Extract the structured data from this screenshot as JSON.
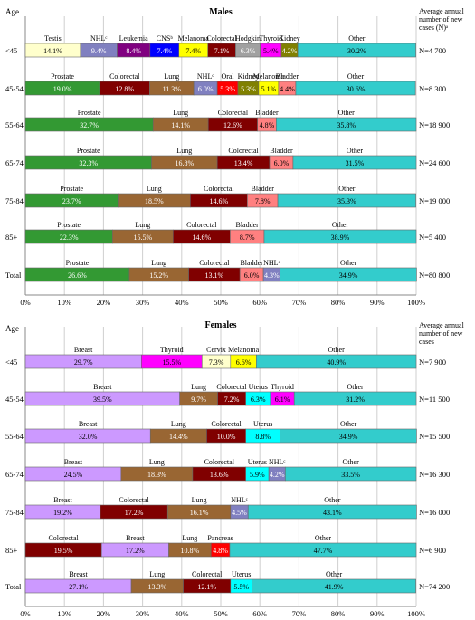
{
  "chart_data": [
    {
      "type": "bar",
      "orientation": "horizontal-stacked-percent",
      "title": "Males",
      "ylabel": "Age",
      "right_header": "Average annual number of new cases (N)ᵃ",
      "xlim": [
        0,
        100
      ],
      "x_ticks": [
        "0%",
        "10%",
        "20%",
        "30%",
        "40%",
        "50%",
        "60%",
        "70%",
        "80%",
        "90%",
        "100%"
      ],
      "grid": "vertical",
      "rows": [
        {
          "category": "<45",
          "n": "N=4 700",
          "segments": [
            {
              "name": "Testis",
              "value": 14.1,
              "color": "#ffffcc",
              "label": "14.1%"
            },
            {
              "name": "NHLᶜ",
              "value": 9.4,
              "color": "#8080c0",
              "label": "9.4%"
            },
            {
              "name": "Leukemia",
              "value": 8.4,
              "color": "#800080",
              "label": "8.4%"
            },
            {
              "name": "CNSᵇ",
              "value": 7.4,
              "color": "#0000ff",
              "label": "7.4%"
            },
            {
              "name": "Melanoma",
              "value": 7.4,
              "color": "#ffff00",
              "label": "7.4%"
            },
            {
              "name": "Colorectal",
              "value": 7.1,
              "color": "#800000",
              "label": "7.1%"
            },
            {
              "name": "Hodgkin",
              "value": 6.3,
              "color": "#a0a0a0",
              "label": "6.3%"
            },
            {
              "name": "Thyroid",
              "value": 5.4,
              "color": "#ff00ff",
              "label": "5.4%"
            },
            {
              "name": "Kidney",
              "value": 4.2,
              "color": "#808000",
              "label": "4.2%"
            },
            {
              "name": "Other",
              "value": 30.2,
              "color": "#33cccc",
              "label": "30.2%"
            }
          ]
        },
        {
          "category": "45-54",
          "n": "N=8 300",
          "segments": [
            {
              "name": "Prostate",
              "value": 19.0,
              "color": "#339933",
              "label": "19.0%"
            },
            {
              "name": "Colorectal",
              "value": 12.8,
              "color": "#800000",
              "label": "12.8%"
            },
            {
              "name": "Lung",
              "value": 11.3,
              "color": "#996633",
              "label": "11.3%"
            },
            {
              "name": "NHLᶜ",
              "value": 6.0,
              "color": "#8080c0",
              "label": "6.0%"
            },
            {
              "name": "Oral",
              "value": 5.3,
              "color": "#ff0000",
              "label": "5.3%"
            },
            {
              "name": "Kidney",
              "value": 5.3,
              "color": "#808000",
              "label": "5.3%"
            },
            {
              "name": "Melanoma",
              "value": 5.1,
              "color": "#ffff00",
              "label": "5.1%"
            },
            {
              "name": "Bladder",
              "value": 4.4,
              "color": "#ff8080",
              "label": "4.4%"
            },
            {
              "name": "Other",
              "value": 30.6,
              "color": "#33cccc",
              "label": "30.6%"
            }
          ]
        },
        {
          "category": "55-64",
          "n": "N=18 900",
          "segments": [
            {
              "name": "Prostate",
              "value": 32.7,
              "color": "#339933",
              "label": "32.7%"
            },
            {
              "name": "Lung",
              "value": 14.1,
              "color": "#996633",
              "label": "14.1%"
            },
            {
              "name": "Colorectal",
              "value": 12.6,
              "color": "#800000",
              "label": "12.6%"
            },
            {
              "name": "Bladder",
              "value": 4.8,
              "color": "#ff8080",
              "label": "4.8%"
            },
            {
              "name": "Other",
              "value": 35.8,
              "color": "#33cccc",
              "label": "35.8%"
            }
          ]
        },
        {
          "category": "65-74",
          "n": "N=24 600",
          "segments": [
            {
              "name": "Prostate",
              "value": 32.3,
              "color": "#339933",
              "label": "32.3%"
            },
            {
              "name": "Lung",
              "value": 16.8,
              "color": "#996633",
              "label": "16.8%"
            },
            {
              "name": "Colorectal",
              "value": 13.4,
              "color": "#800000",
              "label": "13.4%"
            },
            {
              "name": "Bladder",
              "value": 6.0,
              "color": "#ff8080",
              "label": "6.0%"
            },
            {
              "name": "Other",
              "value": 31.5,
              "color": "#33cccc",
              "label": "31.5%"
            }
          ]
        },
        {
          "category": "75-84",
          "n": "N=19 000",
          "segments": [
            {
              "name": "Prostate",
              "value": 23.7,
              "color": "#339933",
              "label": "23.7%"
            },
            {
              "name": "Lung",
              "value": 18.5,
              "color": "#996633",
              "label": "18.5%"
            },
            {
              "name": "Colorectal",
              "value": 14.6,
              "color": "#800000",
              "label": "14.6%"
            },
            {
              "name": "Bladder",
              "value": 7.8,
              "color": "#ff8080",
              "label": "7.8%"
            },
            {
              "name": "Other",
              "value": 35.3,
              "color": "#33cccc",
              "label": "35.3%"
            }
          ]
        },
        {
          "category": "85+",
          "n": "N=5 400",
          "segments": [
            {
              "name": "Prostate",
              "value": 22.3,
              "color": "#339933",
              "label": "22.3%"
            },
            {
              "name": "Lung",
              "value": 15.5,
              "color": "#996633",
              "label": "15.5%"
            },
            {
              "name": "Colorectal",
              "value": 14.6,
              "color": "#800000",
              "label": "14.6%"
            },
            {
              "name": "Bladder",
              "value": 8.7,
              "color": "#ff8080",
              "label": "8.7%"
            },
            {
              "name": "Other",
              "value": 38.9,
              "color": "#33cccc",
              "label": "38.9%"
            }
          ]
        },
        {
          "category": "Total",
          "n": "N=80 800",
          "segments": [
            {
              "name": "Prostate",
              "value": 26.6,
              "color": "#339933",
              "label": "26.6%"
            },
            {
              "name": "Lung",
              "value": 15.2,
              "color": "#996633",
              "label": "15.2%"
            },
            {
              "name": "Colorectal",
              "value": 13.1,
              "color": "#800000",
              "label": "13.1%"
            },
            {
              "name": "Bladder",
              "value": 6.0,
              "color": "#ff8080",
              "label": "6.0%"
            },
            {
              "name": "NHLᶜ",
              "value": 4.3,
              "color": "#8080c0",
              "label": "4.3%"
            },
            {
              "name": "Other",
              "value": 34.9,
              "color": "#33cccc",
              "label": "34.9%"
            }
          ]
        }
      ]
    },
    {
      "type": "bar",
      "orientation": "horizontal-stacked-percent",
      "title": "Females",
      "ylabel": "Age",
      "right_header": "Average annual number of new cases",
      "xlim": [
        0,
        100
      ],
      "x_ticks": [
        "0%",
        "10%",
        "20%",
        "30%",
        "40%",
        "50%",
        "60%",
        "70%",
        "80%",
        "90%",
        "100%"
      ],
      "grid": "vertical",
      "rows": [
        {
          "category": "<45",
          "n": "N=7 900",
          "segments": [
            {
              "name": "Breast",
              "value": 29.7,
              "color": "#cc99ff",
              "label": "29.7%"
            },
            {
              "name": "Thyroid",
              "value": 15.5,
              "color": "#ff00ff",
              "label": "15.5%"
            },
            {
              "name": "Cervix",
              "value": 7.3,
              "color": "#ffffcc",
              "label": "7.3%"
            },
            {
              "name": "Melanoma",
              "value": 6.6,
              "color": "#ffff00",
              "label": "6.6%"
            },
            {
              "name": "Other",
              "value": 40.9,
              "color": "#33cccc",
              "label": "40.9%"
            }
          ]
        },
        {
          "category": "45-54",
          "n": "N=11 500",
          "segments": [
            {
              "name": "Breast",
              "value": 39.5,
              "color": "#cc99ff",
              "label": "39.5%"
            },
            {
              "name": "Lung",
              "value": 9.7,
              "color": "#996633",
              "label": "9.7%"
            },
            {
              "name": "Colorectal",
              "value": 7.2,
              "color": "#800000",
              "label": "7.2%"
            },
            {
              "name": "Uterus",
              "value": 6.3,
              "color": "#00ffff",
              "label": "6.3%"
            },
            {
              "name": "Thyroid",
              "value": 6.1,
              "color": "#ff00ff",
              "label": "6.1%"
            },
            {
              "name": "Other",
              "value": 31.2,
              "color": "#33cccc",
              "label": "31.2%"
            }
          ]
        },
        {
          "category": "55-64",
          "n": "N=15 500",
          "segments": [
            {
              "name": "Breast",
              "value": 32.0,
              "color": "#cc99ff",
              "label": "32.0%"
            },
            {
              "name": "Lung",
              "value": 14.4,
              "color": "#996633",
              "label": "14.4%"
            },
            {
              "name": "Colorectal",
              "value": 10.0,
              "color": "#800000",
              "label": "10.0%"
            },
            {
              "name": "Uterus",
              "value": 8.8,
              "color": "#00ffff",
              "label": "8.8%"
            },
            {
              "name": "Other",
              "value": 34.9,
              "color": "#33cccc",
              "label": "34.9%"
            }
          ]
        },
        {
          "category": "65-74",
          "n": "N=16 300",
          "segments": [
            {
              "name": "Breast",
              "value": 24.5,
              "color": "#cc99ff",
              "label": "24.5%"
            },
            {
              "name": "Lung",
              "value": 18.3,
              "color": "#996633",
              "label": "18.3%"
            },
            {
              "name": "Colorectal",
              "value": 13.6,
              "color": "#800000",
              "label": "13.6%"
            },
            {
              "name": "Uterus",
              "value": 5.9,
              "color": "#00ffff",
              "label": "5.9%"
            },
            {
              "name": "NHLᶜ",
              "value": 4.2,
              "color": "#8080c0",
              "label": "4.2%"
            },
            {
              "name": "Other",
              "value": 33.5,
              "color": "#33cccc",
              "label": "33.5%"
            }
          ]
        },
        {
          "category": "75-84",
          "n": "N=16 000",
          "segments": [
            {
              "name": "Breast",
              "value": 19.2,
              "color": "#cc99ff",
              "label": "19.2%"
            },
            {
              "name": "Colorectal",
              "value": 17.2,
              "color": "#800000",
              "label": "17.2%"
            },
            {
              "name": "Lung",
              "value": 16.1,
              "color": "#996633",
              "label": "16.1%"
            },
            {
              "name": "NHLᶜ",
              "value": 4.5,
              "color": "#8080c0",
              "label": "4.5%"
            },
            {
              "name": "Other",
              "value": 43.1,
              "color": "#33cccc",
              "label": "43.1%"
            }
          ]
        },
        {
          "category": "85+",
          "n": "N=6 900",
          "segments": [
            {
              "name": "Colorectal",
              "value": 19.5,
              "color": "#800000",
              "label": "19.5%"
            },
            {
              "name": "Breast",
              "value": 17.2,
              "color": "#cc99ff",
              "label": "17.2%"
            },
            {
              "name": "Lung",
              "value": 10.8,
              "color": "#996633",
              "label": "10.8%"
            },
            {
              "name": "Pancreas",
              "value": 4.8,
              "color": "#ff0000",
              "label": "4.8%"
            },
            {
              "name": "Other",
              "value": 47.7,
              "color": "#33cccc",
              "label": "47.7%"
            }
          ]
        },
        {
          "category": "Total",
          "n": "N=74 200",
          "segments": [
            {
              "name": "Breast",
              "value": 27.1,
              "color": "#cc99ff",
              "label": "27.1%"
            },
            {
              "name": "Lung",
              "value": 13.3,
              "color": "#996633",
              "label": "13.3%"
            },
            {
              "name": "Colorectal",
              "value": 12.1,
              "color": "#800000",
              "label": "12.1%"
            },
            {
              "name": "Uterus",
              "value": 5.5,
              "color": "#00ffff",
              "label": "5.5%"
            },
            {
              "name": "Other",
              "value": 41.9,
              "color": "#33cccc",
              "label": "41.9%"
            }
          ]
        }
      ]
    }
  ]
}
